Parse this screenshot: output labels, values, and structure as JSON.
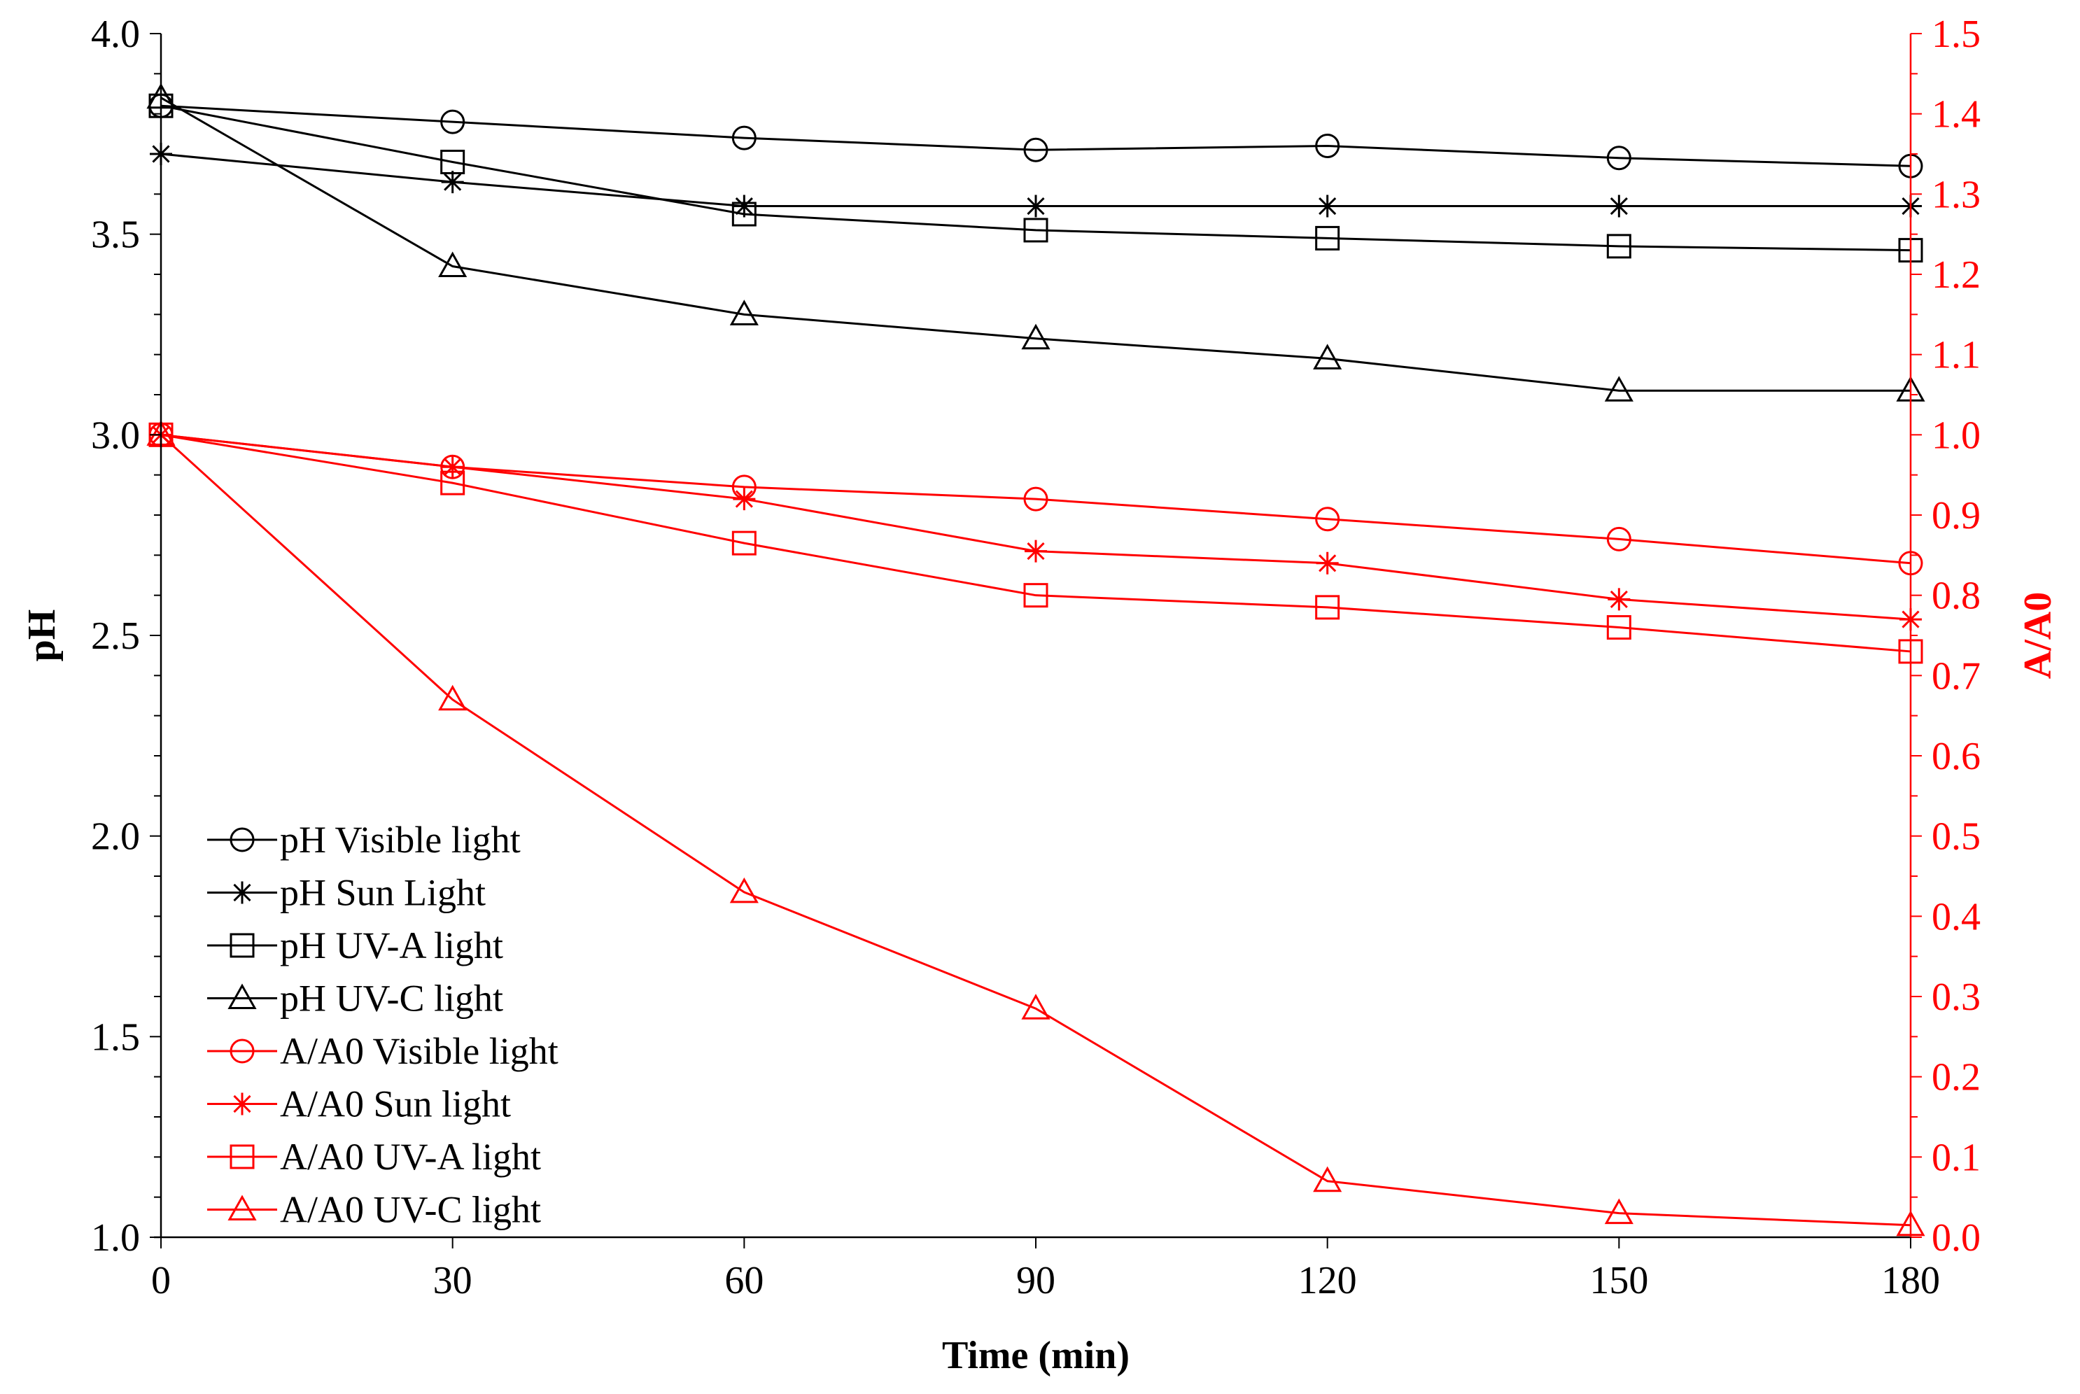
{
  "chart_data": {
    "type": "line",
    "title": "",
    "xlabel": "Time (min)",
    "ylabel": "pH",
    "y2label": "A/A0",
    "x": [
      0,
      30,
      60,
      90,
      120,
      150,
      180
    ],
    "xlim": [
      0,
      180
    ],
    "ylim": [
      1.0,
      4.0
    ],
    "y2lim": [
      0.0,
      1.5
    ],
    "x_ticks": [
      "0",
      "30",
      "60",
      "90",
      "120",
      "150",
      "180"
    ],
    "y_ticks": [
      "1.0",
      "1.5",
      "2.0",
      "2.5",
      "3.0",
      "3.5",
      "4.0"
    ],
    "y2_ticks": [
      "0.0",
      "0.1",
      "0.2",
      "0.3",
      "0.4",
      "0.5",
      "0.6",
      "0.7",
      "0.8",
      "0.9",
      "1.0",
      "1.1",
      "1.2",
      "1.3",
      "1.4",
      "1.5"
    ],
    "grid": false,
    "legend_position": "bottom-left",
    "colors": {
      "ph": "#000000",
      "ratio": "#ff0000"
    },
    "series": [
      {
        "name": "pH Visible light",
        "axis": "left",
        "marker": "circle",
        "color": "#000000",
        "values": [
          3.82,
          3.78,
          3.74,
          3.71,
          3.72,
          3.69,
          3.67
        ]
      },
      {
        "name": "pH Sun Light",
        "axis": "left",
        "marker": "asterisk",
        "color": "#000000",
        "values": [
          3.7,
          3.63,
          3.57,
          3.57,
          3.57,
          3.57,
          3.57
        ]
      },
      {
        "name": "pH UV-A light",
        "axis": "left",
        "marker": "square",
        "color": "#000000",
        "values": [
          3.82,
          3.68,
          3.55,
          3.51,
          3.49,
          3.47,
          3.46
        ]
      },
      {
        "name": "pH UV-C light",
        "axis": "left",
        "marker": "triangle",
        "color": "#000000",
        "values": [
          3.84,
          3.42,
          3.3,
          3.24,
          3.19,
          3.11,
          3.11
        ]
      },
      {
        "name": "A/A0 Visible light",
        "axis": "right",
        "marker": "circle",
        "color": "#ff0000",
        "values": [
          1.0,
          0.96,
          0.935,
          0.92,
          0.895,
          0.87,
          0.84
        ]
      },
      {
        "name": "A/A0 Sun light",
        "axis": "right",
        "marker": "asterisk",
        "color": "#ff0000",
        "values": [
          1.0,
          0.96,
          0.92,
          0.855,
          0.84,
          0.795,
          0.77
        ]
      },
      {
        "name": "A/A0 UV-A light",
        "axis": "right",
        "marker": "square",
        "color": "#ff0000",
        "values": [
          1.0,
          0.94,
          0.865,
          0.8,
          0.785,
          0.76,
          0.73
        ]
      },
      {
        "name": "A/A0 UV-C light",
        "axis": "right",
        "marker": "triangle",
        "color": "#ff0000",
        "values": [
          1.0,
          0.67,
          0.43,
          0.285,
          0.07,
          0.03,
          0.015
        ]
      }
    ]
  }
}
